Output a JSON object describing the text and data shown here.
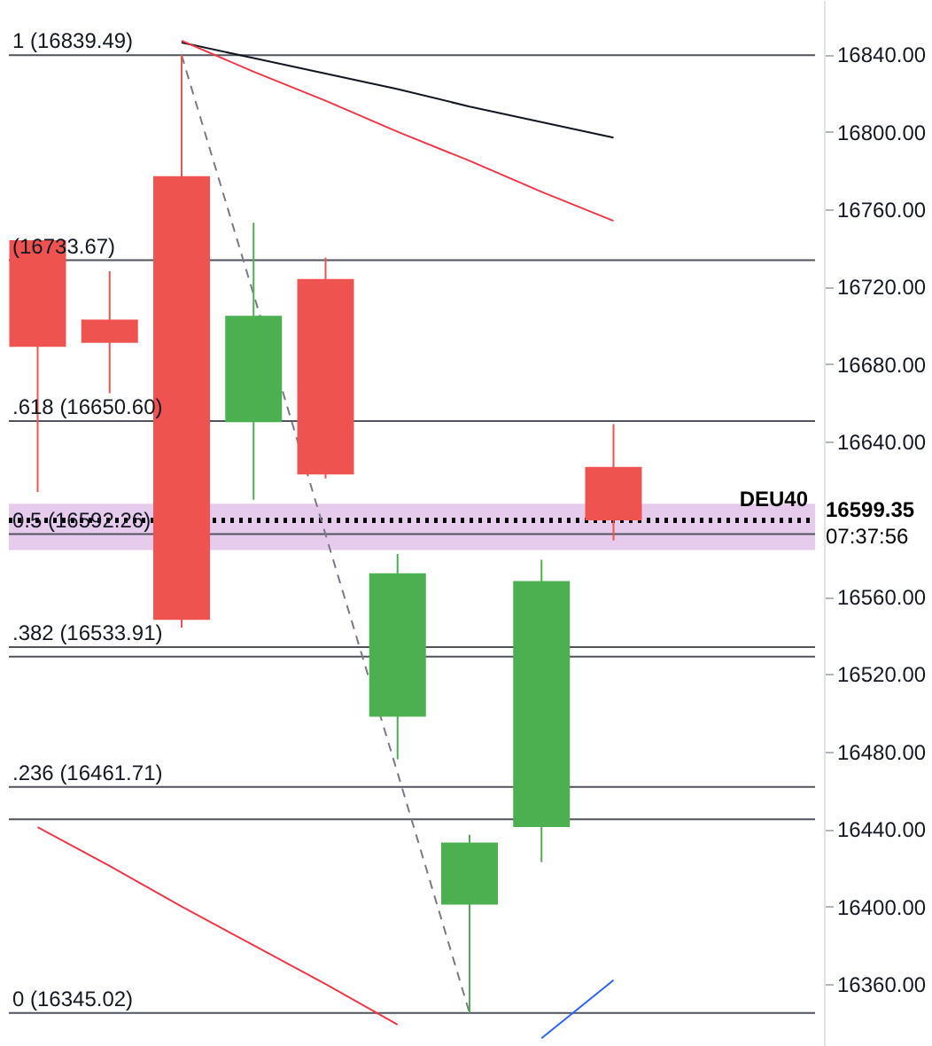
{
  "chart_data": {
    "type": "candlestick",
    "categories": [
      null,
      null,
      null,
      null,
      null,
      null,
      null,
      null,
      null
    ],
    "ohlc": [
      [
        16744,
        16744,
        16614,
        16689
      ],
      [
        16703,
        16728,
        16665,
        16691
      ],
      [
        16777,
        16839.49,
        16544,
        16548
      ],
      [
        16650,
        16753,
        16610,
        16705
      ],
      [
        16724,
        16735,
        16621,
        16623
      ],
      [
        16498,
        16582,
        16476,
        16572
      ],
      [
        16401,
        16437,
        16345.02,
        16433
      ],
      [
        16441,
        16579,
        16423,
        16568
      ],
      [
        16627,
        16649,
        16589,
        16599.35
      ]
    ],
    "colors": [
      "#ef5350",
      "#ef5350",
      "#ef5350",
      "#4caf50",
      "#ef5350",
      "#4caf50",
      "#4caf50",
      "#4caf50",
      "#ef5350"
    ],
    "series": [
      {
        "type": "line",
        "color": "#131722",
        "values": [
          null,
          null,
          16846,
          16838,
          16830,
          16822,
          16813,
          16805,
          16797
        ]
      },
      {
        "type": "line",
        "color": "#f23645",
        "values": [
          null,
          null,
          16847,
          16831,
          16816,
          16800,
          16785,
          16769,
          16754
        ]
      },
      {
        "type": "line",
        "color": "#f23645",
        "values": [
          16441,
          16421,
          16400,
          16380,
          16360,
          16339,
          null,
          null,
          null
        ]
      },
      {
        "type": "line",
        "color": "#2962ff",
        "values": [
          null,
          null,
          null,
          null,
          null,
          null,
          null,
          16332,
          16362
        ]
      },
      {
        "type": "line",
        "color": "#787b86",
        "line_style": "dashed",
        "values": [
          null,
          null,
          16839.49,
          16716,
          16592,
          16469,
          16345.02,
          null,
          null
        ]
      }
    ],
    "ylim": [
      16328,
      16868
    ],
    "yticks": [
      {
        "value": 16360,
        "label": "16360.00"
      },
      {
        "value": 16400,
        "label": "16400.00"
      },
      {
        "value": 16440,
        "label": "16440.00"
      },
      {
        "value": 16480,
        "label": "16480.00"
      },
      {
        "value": 16520,
        "label": "16520.00"
      },
      {
        "value": 16560,
        "label": "16560.00"
      },
      {
        "value": 16640,
        "label": "16640.00"
      },
      {
        "value": 16680,
        "label": "16680.00"
      },
      {
        "value": 16720,
        "label": "16720.00"
      },
      {
        "value": 16760,
        "label": "16760.00"
      },
      {
        "value": 16800,
        "label": "16800.00"
      },
      {
        "value": 16840,
        "label": "16840.00"
      }
    ],
    "tick_labels": "y",
    "ref_lines": [
      {
        "axis": "y",
        "value": 16839.49,
        "label": "1 (16839.49)",
        "color": "#50535e"
      },
      {
        "axis": "y",
        "value": 16733.67,
        "label": "(16733.67)",
        "color": "#50535e"
      },
      {
        "axis": "y",
        "value": 16650.6,
        "label": ".618 (16650.60)",
        "color": "#50535e"
      },
      {
        "axis": "y",
        "value": 16592.26,
        "label": "0.5 (16592.26)",
        "color": "#50535e"
      },
      {
        "axis": "y",
        "value": 16533.91,
        "label": ".382 (16533.91)",
        "color": "#50535e"
      },
      {
        "axis": "y",
        "value": 16529,
        "label": null,
        "color": "#50535e"
      },
      {
        "axis": "y",
        "value": 16461.71,
        "label": ".236 (16461.71)",
        "color": "#50535e"
      },
      {
        "axis": "y",
        "value": 16445,
        "label": null,
        "color": "#50535e"
      },
      {
        "axis": "y",
        "value": 16345.02,
        "label": "0 (16345.02)",
        "color": "#50535e"
      },
      {
        "axis": "y",
        "value": 16599.35,
        "label": "16599.35",
        "color": "#000000",
        "line_style": "dotted"
      }
    ],
    "bands": [
      {
        "axis": "y",
        "from": 16584,
        "to": 16608,
        "label": null,
        "color": "#e1bee7"
      }
    ],
    "annotations": [
      {
        "text": "DEU40",
        "y": 16599.35
      },
      "07:37:56"
    ]
  }
}
